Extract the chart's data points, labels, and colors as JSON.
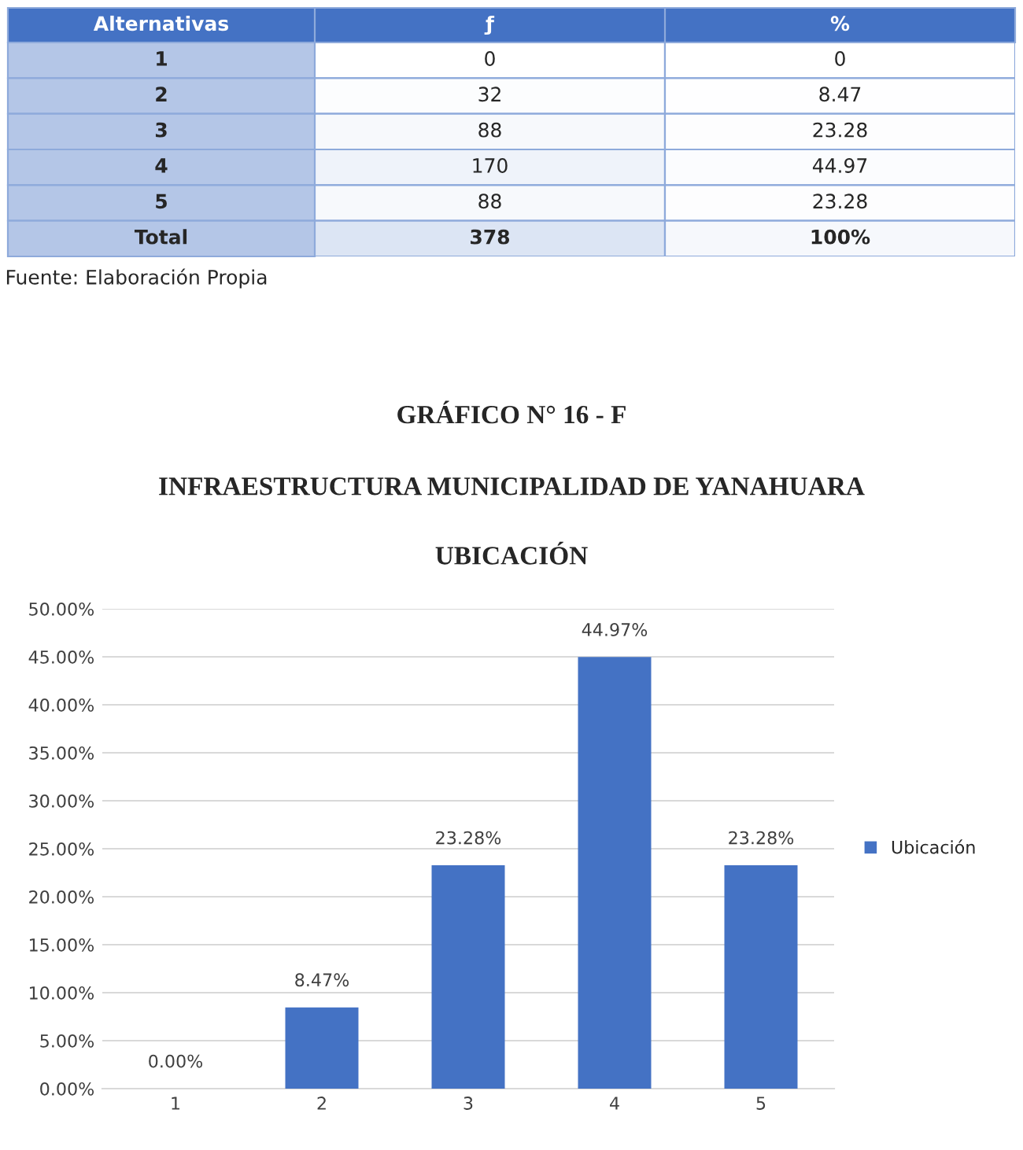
{
  "chart_data": [
    {
      "type": "heatmap",
      "ylabel": "Alternativas",
      "categories": [
        "ƒ",
        "%"
      ],
      "y_categories": [
        "1",
        "2",
        "3",
        "4",
        "5",
        "Total"
      ],
      "cells": [
        [
          0,
          0
        ],
        [
          32,
          8.47
        ],
        [
          88,
          23.28
        ],
        [
          170,
          44.97
        ],
        [
          88,
          23.28
        ],
        [
          378,
          100
        ]
      ],
      "cell_labels": [
        [
          "0",
          "0"
        ],
        [
          "32",
          "8.47"
        ],
        [
          "88",
          "23.28"
        ],
        [
          "170",
          "44.97"
        ],
        [
          "88",
          "23.28"
        ],
        [
          "378",
          "100%"
        ]
      ],
      "annotations": [
        "Fuente: Elaboración Propia"
      ]
    },
    {
      "type": "bar",
      "title": "GRÁFICO N° 16 - F",
      "subtitle": "INFRAESTRUCTURA MUNICIPALIDAD DE YANAHUARA\n\nUBICACIÓN",
      "categories": [
        "1",
        "2",
        "3",
        "4",
        "5"
      ],
      "series": [
        {
          "name": "Ubicación",
          "color": "#4472c4",
          "values": [
            0,
            8.47,
            23.28,
            44.97,
            23.28
          ]
        }
      ],
      "value_labels": [
        "0.00%",
        "8.47%",
        "23.28%",
        "44.97%",
        "23.28%"
      ],
      "ylim": [
        0,
        50
      ],
      "yticks": [
        {
          "value": 0,
          "label": "0.00%"
        },
        {
          "value": 5,
          "label": "5.00%"
        },
        {
          "value": 10,
          "label": "10.00%"
        },
        {
          "value": 15,
          "label": "15.00%"
        },
        {
          "value": 20,
          "label": "20.00%"
        },
        {
          "value": 25,
          "label": "25.00%"
        },
        {
          "value": 30,
          "label": "30.00%"
        },
        {
          "value": 35,
          "label": "35.00%"
        },
        {
          "value": 40,
          "label": "40.00%"
        },
        {
          "value": 45,
          "label": "45.00%"
        },
        {
          "value": 50,
          "label": "50.00%"
        }
      ],
      "grid": "y",
      "legend": "right"
    }
  ]
}
